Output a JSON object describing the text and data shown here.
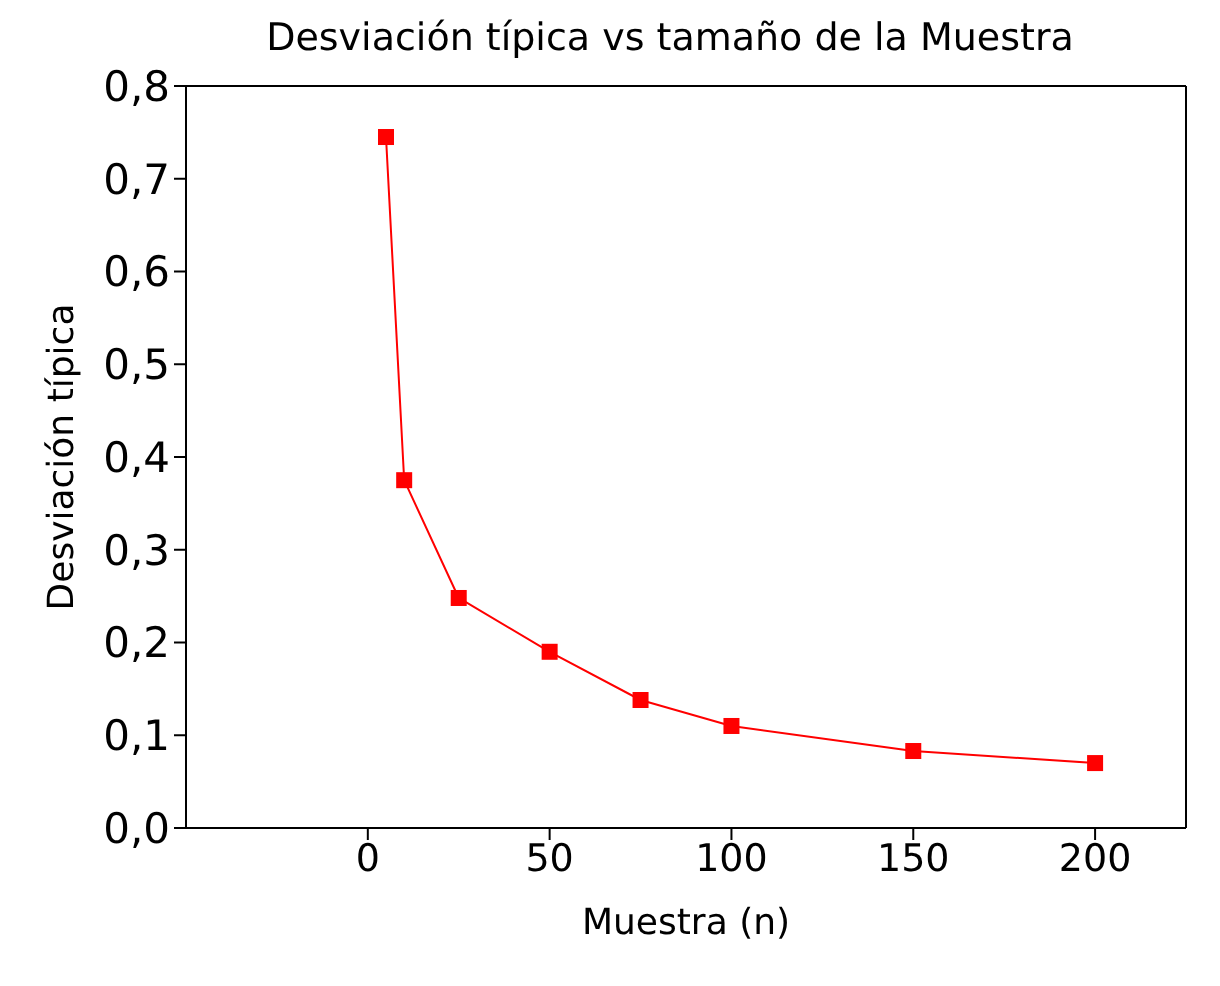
{
  "chart_data": {
    "type": "line",
    "title": "Desviación típica vs tamaño de la Muestra",
    "xlabel": "Muestra (n)",
    "ylabel": "Desviación típica",
    "x": [
      5,
      10,
      25,
      50,
      75,
      100,
      150,
      200
    ],
    "series": [
      {
        "color": "#ff0000",
        "values": [
          0.745,
          0.375,
          0.248,
          0.19,
          0.138,
          0.11,
          0.083,
          0.07
        ]
      }
    ],
    "xlim": [
      -50,
      225
    ],
    "xticks": [
      0,
      50,
      100,
      150,
      200
    ],
    "ylim": [
      0,
      0.8
    ],
    "yticks": [
      {
        "value": 0,
        "label": "0,0"
      },
      {
        "value": 0.1,
        "label": "0,1"
      },
      {
        "value": 0.2,
        "label": "0,2"
      },
      {
        "value": 0.3,
        "label": "0,3"
      },
      {
        "value": 0.4,
        "label": "0,4"
      },
      {
        "value": 0.5,
        "label": "0,5"
      },
      {
        "value": 0.6,
        "label": "0,6"
      },
      {
        "value": 0.7,
        "label": "0,7"
      },
      {
        "value": 0.8,
        "label": "0,8"
      }
    ],
    "grid": false,
    "legend": false,
    "marker": "square",
    "line_style": "solid"
  }
}
